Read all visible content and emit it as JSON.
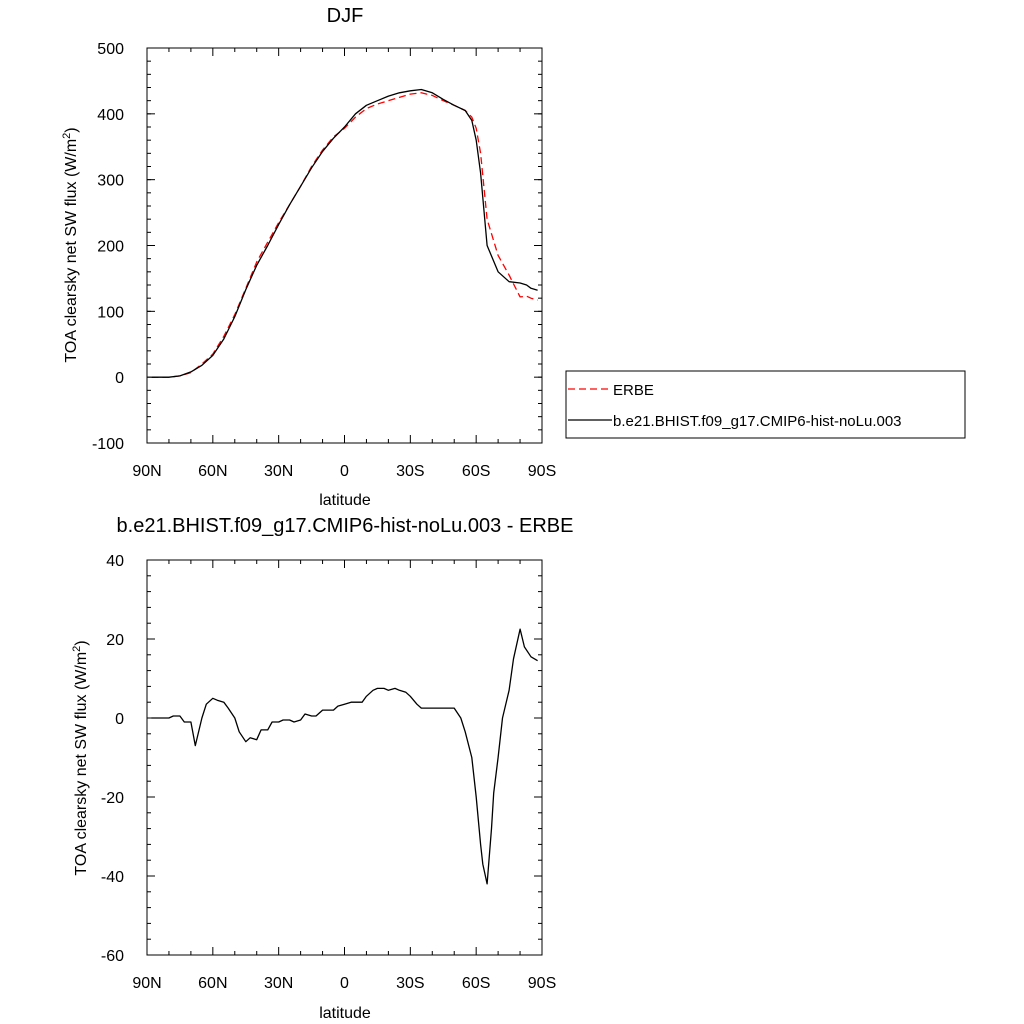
{
  "chart_data": [
    {
      "type": "line",
      "title": "DJF",
      "xlabel": "latitude",
      "ylabel": "TOA clearsky net SW flux (W/m",
      "ylabel_sup": "2",
      "ylabel_tail": ")",
      "xlim": [
        90,
        -90
      ],
      "ylim": [
        -100,
        500
      ],
      "x_ticks": [
        {
          "value": 90,
          "label": "90N"
        },
        {
          "value": 60,
          "label": "60N"
        },
        {
          "value": 30,
          "label": "30N"
        },
        {
          "value": 0,
          "label": "0"
        },
        {
          "value": -30,
          "label": "30S"
        },
        {
          "value": -60,
          "label": "60S"
        },
        {
          "value": -90,
          "label": "90S"
        }
      ],
      "y_ticks": [
        {
          "value": -100,
          "label": "-100"
        },
        {
          "value": 0,
          "label": "0"
        },
        {
          "value": 100,
          "label": "100"
        },
        {
          "value": 200,
          "label": "200"
        },
        {
          "value": 300,
          "label": "300"
        },
        {
          "value": 400,
          "label": "400"
        },
        {
          "value": 500,
          "label": "500"
        }
      ],
      "legend": {
        "placement": "right"
      },
      "series": [
        {
          "name": "ERBE",
          "color": "#ff0000",
          "dash": "dashed",
          "x": [
            88,
            85,
            80,
            75,
            70,
            65,
            60,
            55,
            50,
            45,
            40,
            35,
            30,
            25,
            20,
            15,
            10,
            5,
            0,
            -5,
            -10,
            -15,
            -20,
            -25,
            -30,
            -35,
            -40,
            -45,
            -50,
            -55,
            -58,
            -60,
            -62,
            -65,
            -70,
            -75,
            -80,
            -83,
            -85,
            -88
          ],
          "y": [
            0,
            0,
            0,
            2,
            7,
            20,
            35,
            62,
            95,
            135,
            175,
            205,
            235,
            262,
            290,
            320,
            345,
            365,
            378,
            395,
            408,
            415,
            420,
            425,
            430,
            432,
            428,
            420,
            413,
            405,
            395,
            378,
            340,
            240,
            185,
            155,
            122,
            123,
            120,
            117
          ]
        },
        {
          "name": "b.e21.BHIST.f09_g17.CMIP6-hist-noLu.003",
          "color": "#000000",
          "dash": "solid",
          "x": [
            88,
            85,
            80,
            75,
            70,
            65,
            60,
            55,
            50,
            45,
            40,
            35,
            30,
            25,
            20,
            15,
            10,
            5,
            0,
            -5,
            -10,
            -15,
            -20,
            -25,
            -30,
            -35,
            -40,
            -45,
            -50,
            -55,
            -58,
            -60,
            -62,
            -65,
            -70,
            -75,
            -80,
            -83,
            -85,
            -88
          ],
          "y": [
            0,
            0,
            0,
            2,
            8,
            18,
            33,
            58,
            92,
            133,
            170,
            200,
            232,
            262,
            290,
            318,
            343,
            363,
            380,
            400,
            413,
            420,
            427,
            432,
            435,
            437,
            432,
            422,
            413,
            405,
            390,
            360,
            310,
            200,
            160,
            145,
            143,
            140,
            135,
            132
          ]
        }
      ]
    },
    {
      "type": "line",
      "title": "b.e21.BHIST.f09_g17.CMIP6-hist-noLu.003 - ERBE",
      "xlabel": "latitude",
      "ylabel": "TOA clearsky net SW flux (W/m",
      "ylabel_sup": "2",
      "ylabel_tail": ")",
      "xlim": [
        90,
        -90
      ],
      "ylim": [
        -60,
        40
      ],
      "x_ticks": [
        {
          "value": 90,
          "label": "90N"
        },
        {
          "value": 60,
          "label": "60N"
        },
        {
          "value": 30,
          "label": "30N"
        },
        {
          "value": 0,
          "label": "0"
        },
        {
          "value": -30,
          "label": "30S"
        },
        {
          "value": -60,
          "label": "60S"
        },
        {
          "value": -90,
          "label": "90S"
        }
      ],
      "y_ticks": [
        {
          "value": -60,
          "label": "-60"
        },
        {
          "value": -40,
          "label": "-40"
        },
        {
          "value": -20,
          "label": "-20"
        },
        {
          "value": 0,
          "label": "0"
        },
        {
          "value": 20,
          "label": "20"
        },
        {
          "value": 40,
          "label": "40"
        }
      ],
      "series": [
        {
          "color": "#000000",
          "dash": "solid",
          "x": [
            88,
            85,
            83,
            80,
            78,
            75,
            73,
            70,
            68,
            65,
            63,
            60,
            58,
            55,
            53,
            50,
            48,
            45,
            43,
            40,
            38,
            35,
            33,
            30,
            28,
            25,
            23,
            20,
            18,
            15,
            13,
            10,
            8,
            5,
            3,
            0,
            -3,
            -5,
            -8,
            -10,
            -13,
            -15,
            -18,
            -20,
            -23,
            -25,
            -28,
            -30,
            -33,
            -35,
            -38,
            -40,
            -43,
            -45,
            -48,
            -50,
            -53,
            -55,
            -58,
            -60,
            -62,
            -63,
            -65,
            -67,
            -68,
            -70,
            -72,
            -75,
            -77,
            -80,
            -82,
            -85,
            -88
          ],
          "y": [
            0,
            0,
            0,
            0,
            0.5,
            0.5,
            -1,
            -1,
            -7,
            0,
            3.5,
            5,
            4.5,
            4,
            2.5,
            0,
            -3.5,
            -6,
            -5,
            -5.5,
            -3,
            -3,
            -1,
            -1,
            -0.5,
            -0.5,
            -1,
            -0.5,
            1,
            0.5,
            0.5,
            2,
            2,
            2,
            3,
            3.5,
            4,
            4,
            4,
            5.5,
            7,
            7.5,
            7.5,
            7,
            7.5,
            7,
            6.5,
            5.5,
            3.5,
            2.5,
            2.5,
            2.5,
            2.5,
            2.5,
            2.5,
            2.5,
            0,
            -3.5,
            -10,
            -20,
            -32,
            -37,
            -42,
            -28,
            -19,
            -10,
            0,
            7,
            15,
            22.5,
            18,
            15.5,
            14.5
          ]
        }
      ]
    }
  ]
}
